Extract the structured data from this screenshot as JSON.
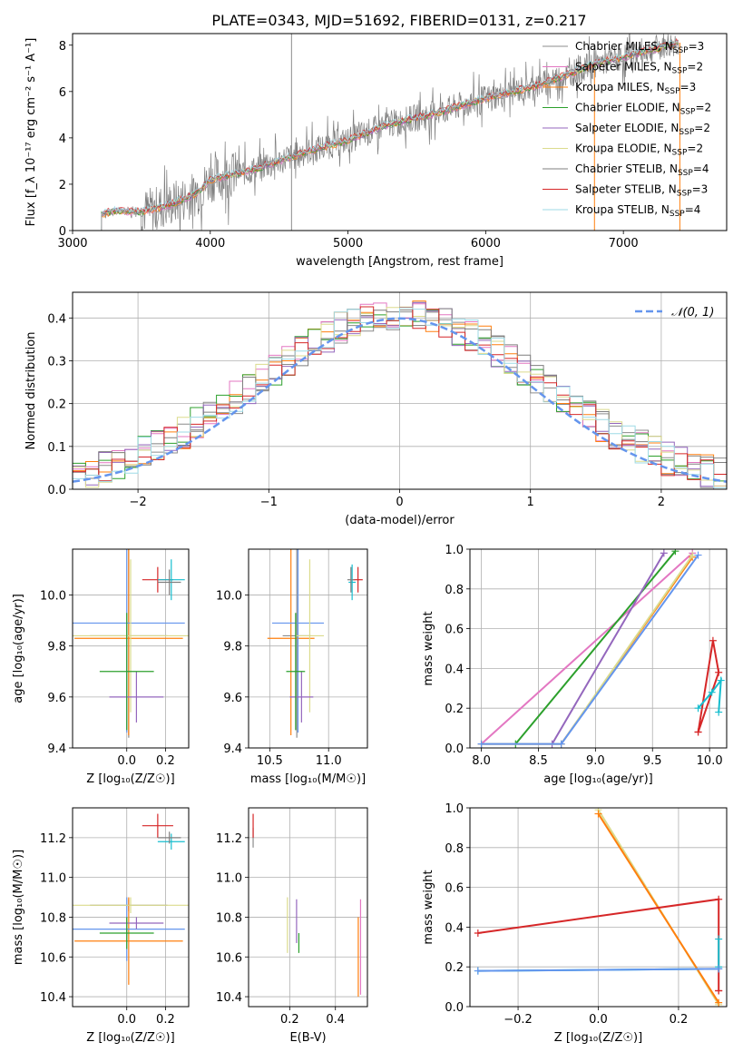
{
  "figure_title": "PLATE=0343, MJD=51692, FIBERID=0131, z=0.217",
  "colors": {
    "Chabrier MILES": "#8c8c8c",
    "Salpeter MILES": "#e377c2",
    "Kroupa MILES": "#ff7f0e",
    "Chabrier ELODIE": "#2ca02c",
    "Salpeter ELODIE": "#9467bd",
    "Kroupa ELODIE": "#dbdb8d",
    "Chabrier STELIB": "#7f7f7f",
    "Salpeter STELIB": "#d62728",
    "Kroupa STELIB": "#17becf",
    "Normal": "#6495ed"
  },
  "chart_data": [
    {
      "id": "spectrum",
      "type": "line",
      "title": "PLATE=0343, MJD=51692, FIBERID=0131, z=0.217",
      "xlabel": "wavelength [Angstrom, rest frame]",
      "ylabel": "Flux [f_λ 10⁻¹⁷ erg cm⁻² s⁻¹ A⁻¹]",
      "xlim": [
        3000,
        7750
      ],
      "ylim": [
        0,
        8.5
      ],
      "xticks": [
        "3000",
        "4000",
        "5000",
        "6000",
        "7000"
      ],
      "yticks": [
        "0",
        "2",
        "4",
        "6",
        "8"
      ],
      "grid": false,
      "legend_position": "top-right",
      "legend": [
        {
          "label": "Chabrier MILES, N_SSP=3",
          "color": "#8c8c8c"
        },
        {
          "label": "Salpeter MILES, N_SSP=2",
          "color": "#e377c2"
        },
        {
          "label": "Kroupa MILES, N_SSP=3",
          "color": "#ff7f0e"
        },
        {
          "label": "Chabrier ELODIE, N_SSP=2",
          "color": "#2ca02c"
        },
        {
          "label": "Salpeter ELODIE, N_SSP=2",
          "color": "#9467bd"
        },
        {
          "label": "Kroupa ELODIE, N_SSP=2",
          "color": "#dbdb8d"
        },
        {
          "label": "Chabrier STELIB, N_SSP=4",
          "color": "#7f7f7f"
        },
        {
          "label": "Salpeter STELIB, N_SSP=3",
          "color": "#d62728"
        },
        {
          "label": "Kroupa STELIB, N_SSP=4",
          "color": "#9edae5"
        }
      ],
      "model_continuum": [
        [
          3210,
          0.7
        ],
        [
          3300,
          0.85
        ],
        [
          3500,
          0.8
        ],
        [
          3700,
          1.1
        ],
        [
          3900,
          1.6
        ],
        [
          4000,
          2.2
        ],
        [
          4300,
          2.6
        ],
        [
          4700,
          3.4
        ],
        [
          5000,
          3.9
        ],
        [
          5300,
          4.6
        ],
        [
          5600,
          5.0
        ],
        [
          6000,
          5.7
        ],
        [
          6400,
          6.3
        ],
        [
          6800,
          7.2
        ],
        [
          7200,
          7.8
        ],
        [
          7400,
          8.1
        ]
      ],
      "observed_line_x": 4590
    },
    {
      "id": "residuals",
      "type": "line",
      "xlabel": "(data-model)/error",
      "ylabel": "Normed distribution",
      "xlim": [
        -2.5,
        2.5
      ],
      "ylim": [
        0,
        0.46
      ],
      "xticks": [
        "−2",
        "−1",
        "0",
        "1",
        "2"
      ],
      "yticks": [
        "0.0",
        "0.1",
        "0.2",
        "0.3",
        "0.4"
      ],
      "grid": true,
      "legend_position": "top-right",
      "legend": [
        {
          "label": "𝒩(0, 1)",
          "color": "#6495ed"
        }
      ],
      "normal_curve": {
        "mean": 0,
        "sigma": 1
      }
    },
    {
      "id": "age-vs-Z",
      "type": "scatter",
      "xlabel": "Z [log₁₀(Z/Z☉)]",
      "ylabel": "age  [log₁₀(age/yr)]",
      "xlim": [
        -0.28,
        0.32
      ],
      "ylim": [
        9.4,
        10.18
      ],
      "xticks": [
        "0.0",
        "0.2"
      ],
      "yticks": [
        "9.4",
        "9.6",
        "9.8",
        "10.0"
      ],
      "grid": true,
      "points": [
        {
          "x": 0.01,
          "y": 9.84,
          "xerr": 0.2,
          "yerr": 0.4,
          "color": "#8c8c8c"
        },
        {
          "x": 0.01,
          "y": 9.83,
          "xerr": 0.28,
          "yerr": 0.38,
          "color": "#ff7f0e"
        },
        {
          "x": 0.0,
          "y": 9.89,
          "xerr": 0.3,
          "yerr": 0.43,
          "color": "#6495ed"
        },
        {
          "x": 0.02,
          "y": 9.84,
          "xerr": 0.3,
          "yerr": 0.3,
          "color": "#dbdb8d"
        },
        {
          "x": 0.05,
          "y": 9.6,
          "xerr": 0.14,
          "yerr": 0.1,
          "color": "#9467bd"
        },
        {
          "x": 0.0,
          "y": 9.7,
          "xerr": 0.14,
          "yerr": 0.23,
          "color": "#2ca02c"
        },
        {
          "x": 0.16,
          "y": 10.06,
          "xerr": 0.08,
          "yerr": 0.05,
          "color": "#d62728"
        },
        {
          "x": 0.23,
          "y": 10.06,
          "xerr": 0.07,
          "yerr": 0.08,
          "color": "#17becf"
        },
        {
          "x": 0.22,
          "y": 10.05,
          "xerr": 0.06,
          "yerr": 0.05,
          "color": "#7f7f7f"
        }
      ]
    },
    {
      "id": "age-vs-mass",
      "type": "scatter",
      "xlabel": "mass [log₁₀(M/M☉)]",
      "ylabel": "",
      "xlim": [
        10.32,
        11.33
      ],
      "ylim": [
        9.4,
        10.18
      ],
      "xticks": [
        "10.5",
        "11.0"
      ],
      "yticks": [
        "9.4",
        "9.6",
        "9.8",
        "10.0"
      ],
      "grid": true,
      "points": [
        {
          "x": 10.73,
          "y": 9.84,
          "xerr": 0.12,
          "yerr": 0.4,
          "color": "#8c8c8c"
        },
        {
          "x": 10.68,
          "y": 9.83,
          "xerr": 0.2,
          "yerr": 0.38,
          "color": "#ff7f0e"
        },
        {
          "x": 10.74,
          "y": 9.89,
          "xerr": 0.22,
          "yerr": 0.43,
          "color": "#6495ed"
        },
        {
          "x": 10.84,
          "y": 9.84,
          "xerr": 0.12,
          "yerr": 0.3,
          "color": "#dbdb8d"
        },
        {
          "x": 10.77,
          "y": 9.6,
          "xerr": 0.1,
          "yerr": 0.1,
          "color": "#9467bd"
        },
        {
          "x": 10.72,
          "y": 9.7,
          "xerr": 0.08,
          "yerr": 0.23,
          "color": "#2ca02c"
        },
        {
          "x": 11.25,
          "y": 10.06,
          "xerr": 0.04,
          "yerr": 0.05,
          "color": "#d62728"
        },
        {
          "x": 11.2,
          "y": 10.05,
          "xerr": 0.03,
          "yerr": 0.07,
          "color": "#17becf"
        },
        {
          "x": 11.19,
          "y": 10.06,
          "xerr": 0.03,
          "yerr": 0.05,
          "color": "#7f7f7f"
        }
      ]
    },
    {
      "id": "mass-weight-vs-age",
      "type": "line",
      "xlabel": "age  [log₁₀(age/yr)]",
      "ylabel": "mass weight",
      "xlim": [
        7.9,
        10.15
      ],
      "ylim": [
        0,
        1
      ],
      "xticks": [
        "8.0",
        "8.5",
        "9.0",
        "9.5",
        "10.0"
      ],
      "yticks": [
        "0.0",
        "0.2",
        "0.4",
        "0.6",
        "0.8",
        "1.0"
      ],
      "grid": true,
      "series": [
        {
          "color": "#e377c2",
          "x": [
            8.0,
            9.85
          ],
          "y": [
            0.02,
            0.98
          ]
        },
        {
          "color": "#2ca02c",
          "x": [
            8.3,
            9.7
          ],
          "y": [
            0.02,
            0.99
          ]
        },
        {
          "color": "#9467bd",
          "x": [
            8.62,
            9.6
          ],
          "y": [
            0.02,
            0.98
          ]
        },
        {
          "color": "#ff7f0e",
          "x": [
            8.0,
            8.7,
            9.85
          ],
          "y": [
            0.02,
            0.02,
            0.96
          ]
        },
        {
          "color": "#dbdb8d",
          "x": [
            8.0,
            8.7,
            9.85
          ],
          "y": [
            0.02,
            0.02,
            0.97
          ]
        },
        {
          "color": "#6495ed",
          "x": [
            8.0,
            8.7,
            9.9
          ],
          "y": [
            0.02,
            0.02,
            0.97
          ]
        },
        {
          "color": "#d62728",
          "x": [
            9.9,
            10.03,
            10.08,
            9.9
          ],
          "y": [
            0.08,
            0.54,
            0.38,
            0.08
          ]
        },
        {
          "color": "#17becf",
          "x": [
            9.9,
            10.02,
            10.1,
            10.08
          ],
          "y": [
            0.2,
            0.28,
            0.34,
            0.18
          ]
        }
      ]
    },
    {
      "id": "mass-vs-Z",
      "type": "scatter",
      "xlabel": "Z [log₁₀(Z/Z☉)]",
      "ylabel": "mass [log₁₀(M/M☉)]",
      "xlim": [
        -0.28,
        0.32
      ],
      "ylim": [
        10.35,
        11.35
      ],
      "xticks": [
        "0.0",
        "0.2"
      ],
      "yticks": [
        "10.4",
        "10.6",
        "10.8",
        "11.0",
        "11.2"
      ],
      "grid": true,
      "points": [
        {
          "x": 0.01,
          "y": 10.86,
          "xerr": 0.2,
          "yerr": 0.03,
          "color": "#8c8c8c"
        },
        {
          "x": 0.01,
          "y": 10.68,
          "xerr": 0.28,
          "yerr": 0.22,
          "color": "#ff7f0e"
        },
        {
          "x": 0.0,
          "y": 10.74,
          "xerr": 0.3,
          "yerr": 0.16,
          "color": "#6495ed"
        },
        {
          "x": 0.02,
          "y": 10.86,
          "xerr": 0.3,
          "yerr": 0.04,
          "color": "#dbdb8d"
        },
        {
          "x": 0.05,
          "y": 10.77,
          "xerr": 0.14,
          "yerr": 0.03,
          "color": "#9467bd"
        },
        {
          "x": 0.0,
          "y": 10.72,
          "xerr": 0.14,
          "yerr": 0.08,
          "color": "#2ca02c"
        },
        {
          "x": 0.16,
          "y": 11.26,
          "xerr": 0.08,
          "yerr": 0.06,
          "color": "#d62728"
        },
        {
          "x": 0.23,
          "y": 11.18,
          "xerr": 0.07,
          "yerr": 0.04,
          "color": "#17becf"
        },
        {
          "x": 0.22,
          "y": 11.2,
          "xerr": 0.06,
          "yerr": 0.03,
          "color": "#7f7f7f"
        }
      ]
    },
    {
      "id": "mass-vs-EBV",
      "type": "scatter",
      "xlabel": "E(B-V)",
      "ylabel": "",
      "xlim": [
        0.02,
        0.54
      ],
      "ylim": [
        10.35,
        11.35
      ],
      "xticks": [
        "0.2",
        "0.4"
      ],
      "yticks": [
        "10.4",
        "10.6",
        "10.8",
        "11.0",
        "11.2"
      ],
      "grid": true,
      "points": [
        {
          "x": 0.04,
          "y": 11.2,
          "xerr": 0,
          "yerr": 0.05,
          "color": "#8c8c8c"
        },
        {
          "x": 0.19,
          "y": 10.76,
          "xerr": 0,
          "yerr": 0.14,
          "color": "#dbdb8d"
        },
        {
          "x": 0.23,
          "y": 10.78,
          "xerr": 0,
          "yerr": 0.11,
          "color": "#9467bd"
        },
        {
          "x": 0.24,
          "y": 10.67,
          "xerr": 0,
          "yerr": 0.05,
          "color": "#2ca02c"
        },
        {
          "x": 0.5,
          "y": 10.6,
          "xerr": 0,
          "yerr": 0.2,
          "color": "#ff7f0e"
        },
        {
          "x": 0.51,
          "y": 10.65,
          "xerr": 0,
          "yerr": 0.24,
          "color": "#e377c2"
        },
        {
          "x": 0.04,
          "y": 11.26,
          "xerr": 0,
          "yerr": 0.06,
          "color": "#d62728"
        }
      ]
    },
    {
      "id": "mass-weight-vs-Z",
      "type": "line",
      "xlabel": "Z [log₁₀(Z/Z☉)]",
      "ylabel": "mass weight",
      "xlim": [
        -0.32,
        0.32
      ],
      "ylim": [
        0,
        1
      ],
      "xticks": [
        "−0.2",
        "0.0",
        "0.2"
      ],
      "yticks": [
        "0.0",
        "0.2",
        "0.4",
        "0.6",
        "0.8",
        "1.0"
      ],
      "grid": true,
      "series": [
        {
          "color": "#dbdb8d",
          "x": [
            0.0,
            0.3
          ],
          "y": [
            0.99,
            0.01
          ]
        },
        {
          "color": "#ff7f0e",
          "x": [
            0.0,
            0.3
          ],
          "y": [
            0.97,
            0.02
          ]
        },
        {
          "color": "#d62728",
          "x": [
            -0.3,
            0.3,
            0.3,
            0.3
          ],
          "y": [
            0.37,
            0.54,
            0.08,
            0.08
          ]
        },
        {
          "color": "#17becf",
          "x": [
            -0.3,
            0.3,
            0.3,
            0.3
          ],
          "y": [
            0.18,
            0.19,
            0.34,
            0.2
          ]
        },
        {
          "color": "#6495ed",
          "x": [
            -0.3,
            0.3
          ],
          "y": [
            0.18,
            0.19
          ]
        }
      ]
    }
  ]
}
